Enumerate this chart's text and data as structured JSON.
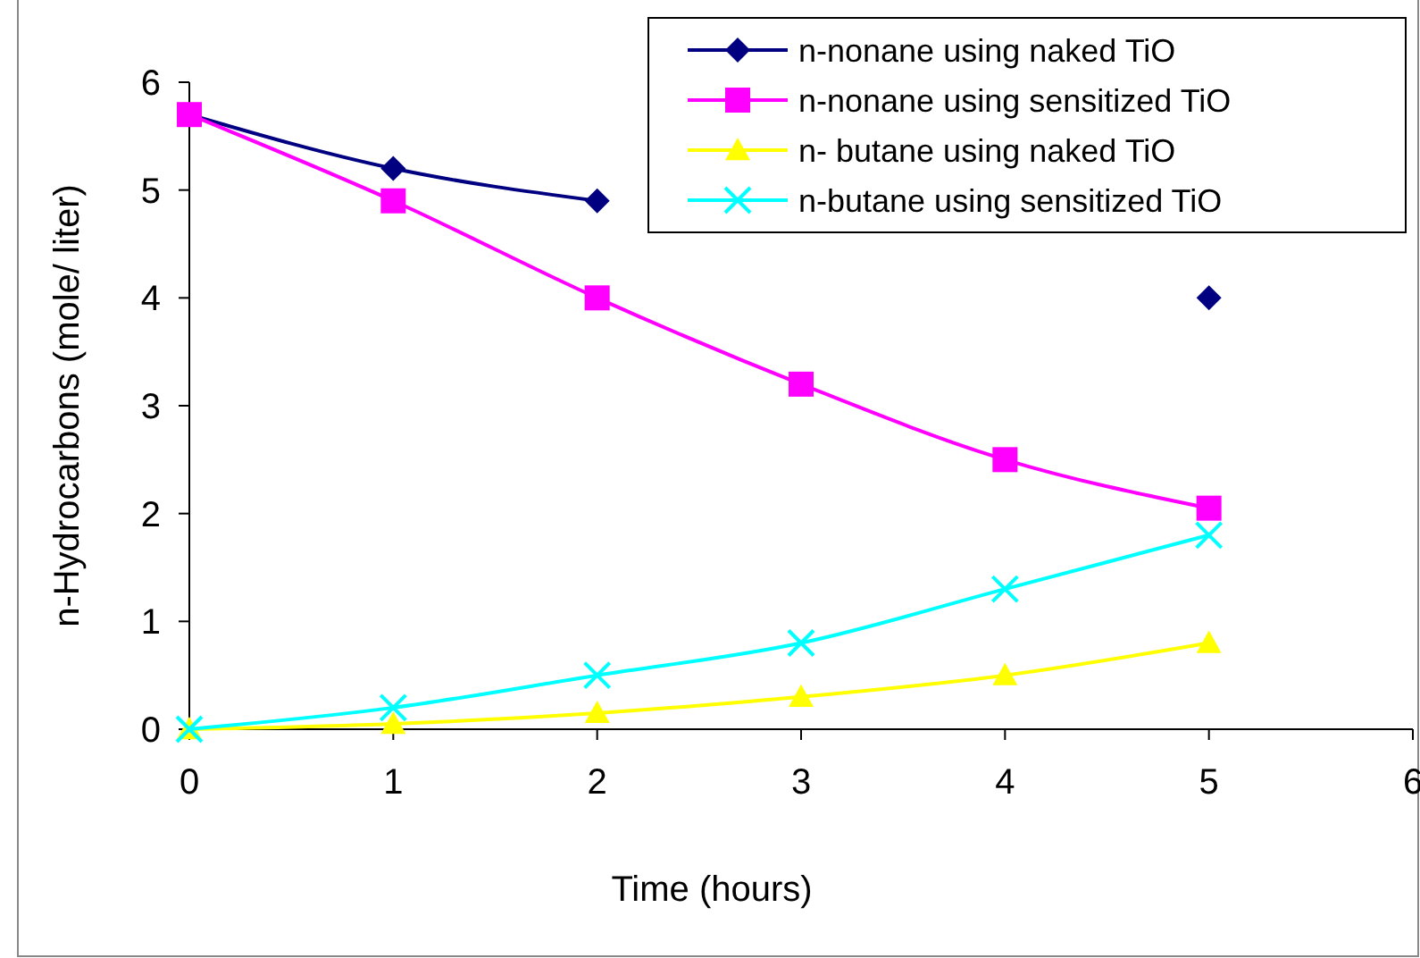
{
  "chart_data": {
    "type": "line",
    "xlabel": "Time (hours)",
    "ylabel": "n-Hydrocarbons (mole/ liter)",
    "x": [
      0,
      1,
      2,
      3,
      4,
      5
    ],
    "xlim": [
      0,
      6
    ],
    "xticks": [
      0,
      1,
      2,
      3,
      4,
      5,
      6
    ],
    "ylim": [
      0,
      6
    ],
    "yticks": [
      0,
      1,
      2,
      3,
      4,
      5,
      6
    ],
    "grid": false,
    "legend": "top right",
    "series": [
      {
        "name": "n-nonane using naked TiO",
        "color": "#000080",
        "marker": "diamond",
        "values": [
          5.7,
          5.2,
          4.9,
          null,
          null,
          4.0
        ]
      },
      {
        "name": "n-nonane using sensitized TiO",
        "color": "#ff00ff",
        "marker": "square",
        "values": [
          5.7,
          4.9,
          4.0,
          3.2,
          2.5,
          2.05
        ]
      },
      {
        "name": "n- butane using naked TiO",
        "color": "#ffff00",
        "marker": "triangle",
        "values": [
          0,
          0.05,
          0.15,
          0.3,
          0.5,
          0.8
        ]
      },
      {
        "name": "n-butane using sensitized TiO",
        "color": "#00ffff",
        "marker": "cross",
        "values": [
          0,
          0.2,
          0.5,
          0.8,
          1.3,
          1.8
        ]
      }
    ]
  }
}
